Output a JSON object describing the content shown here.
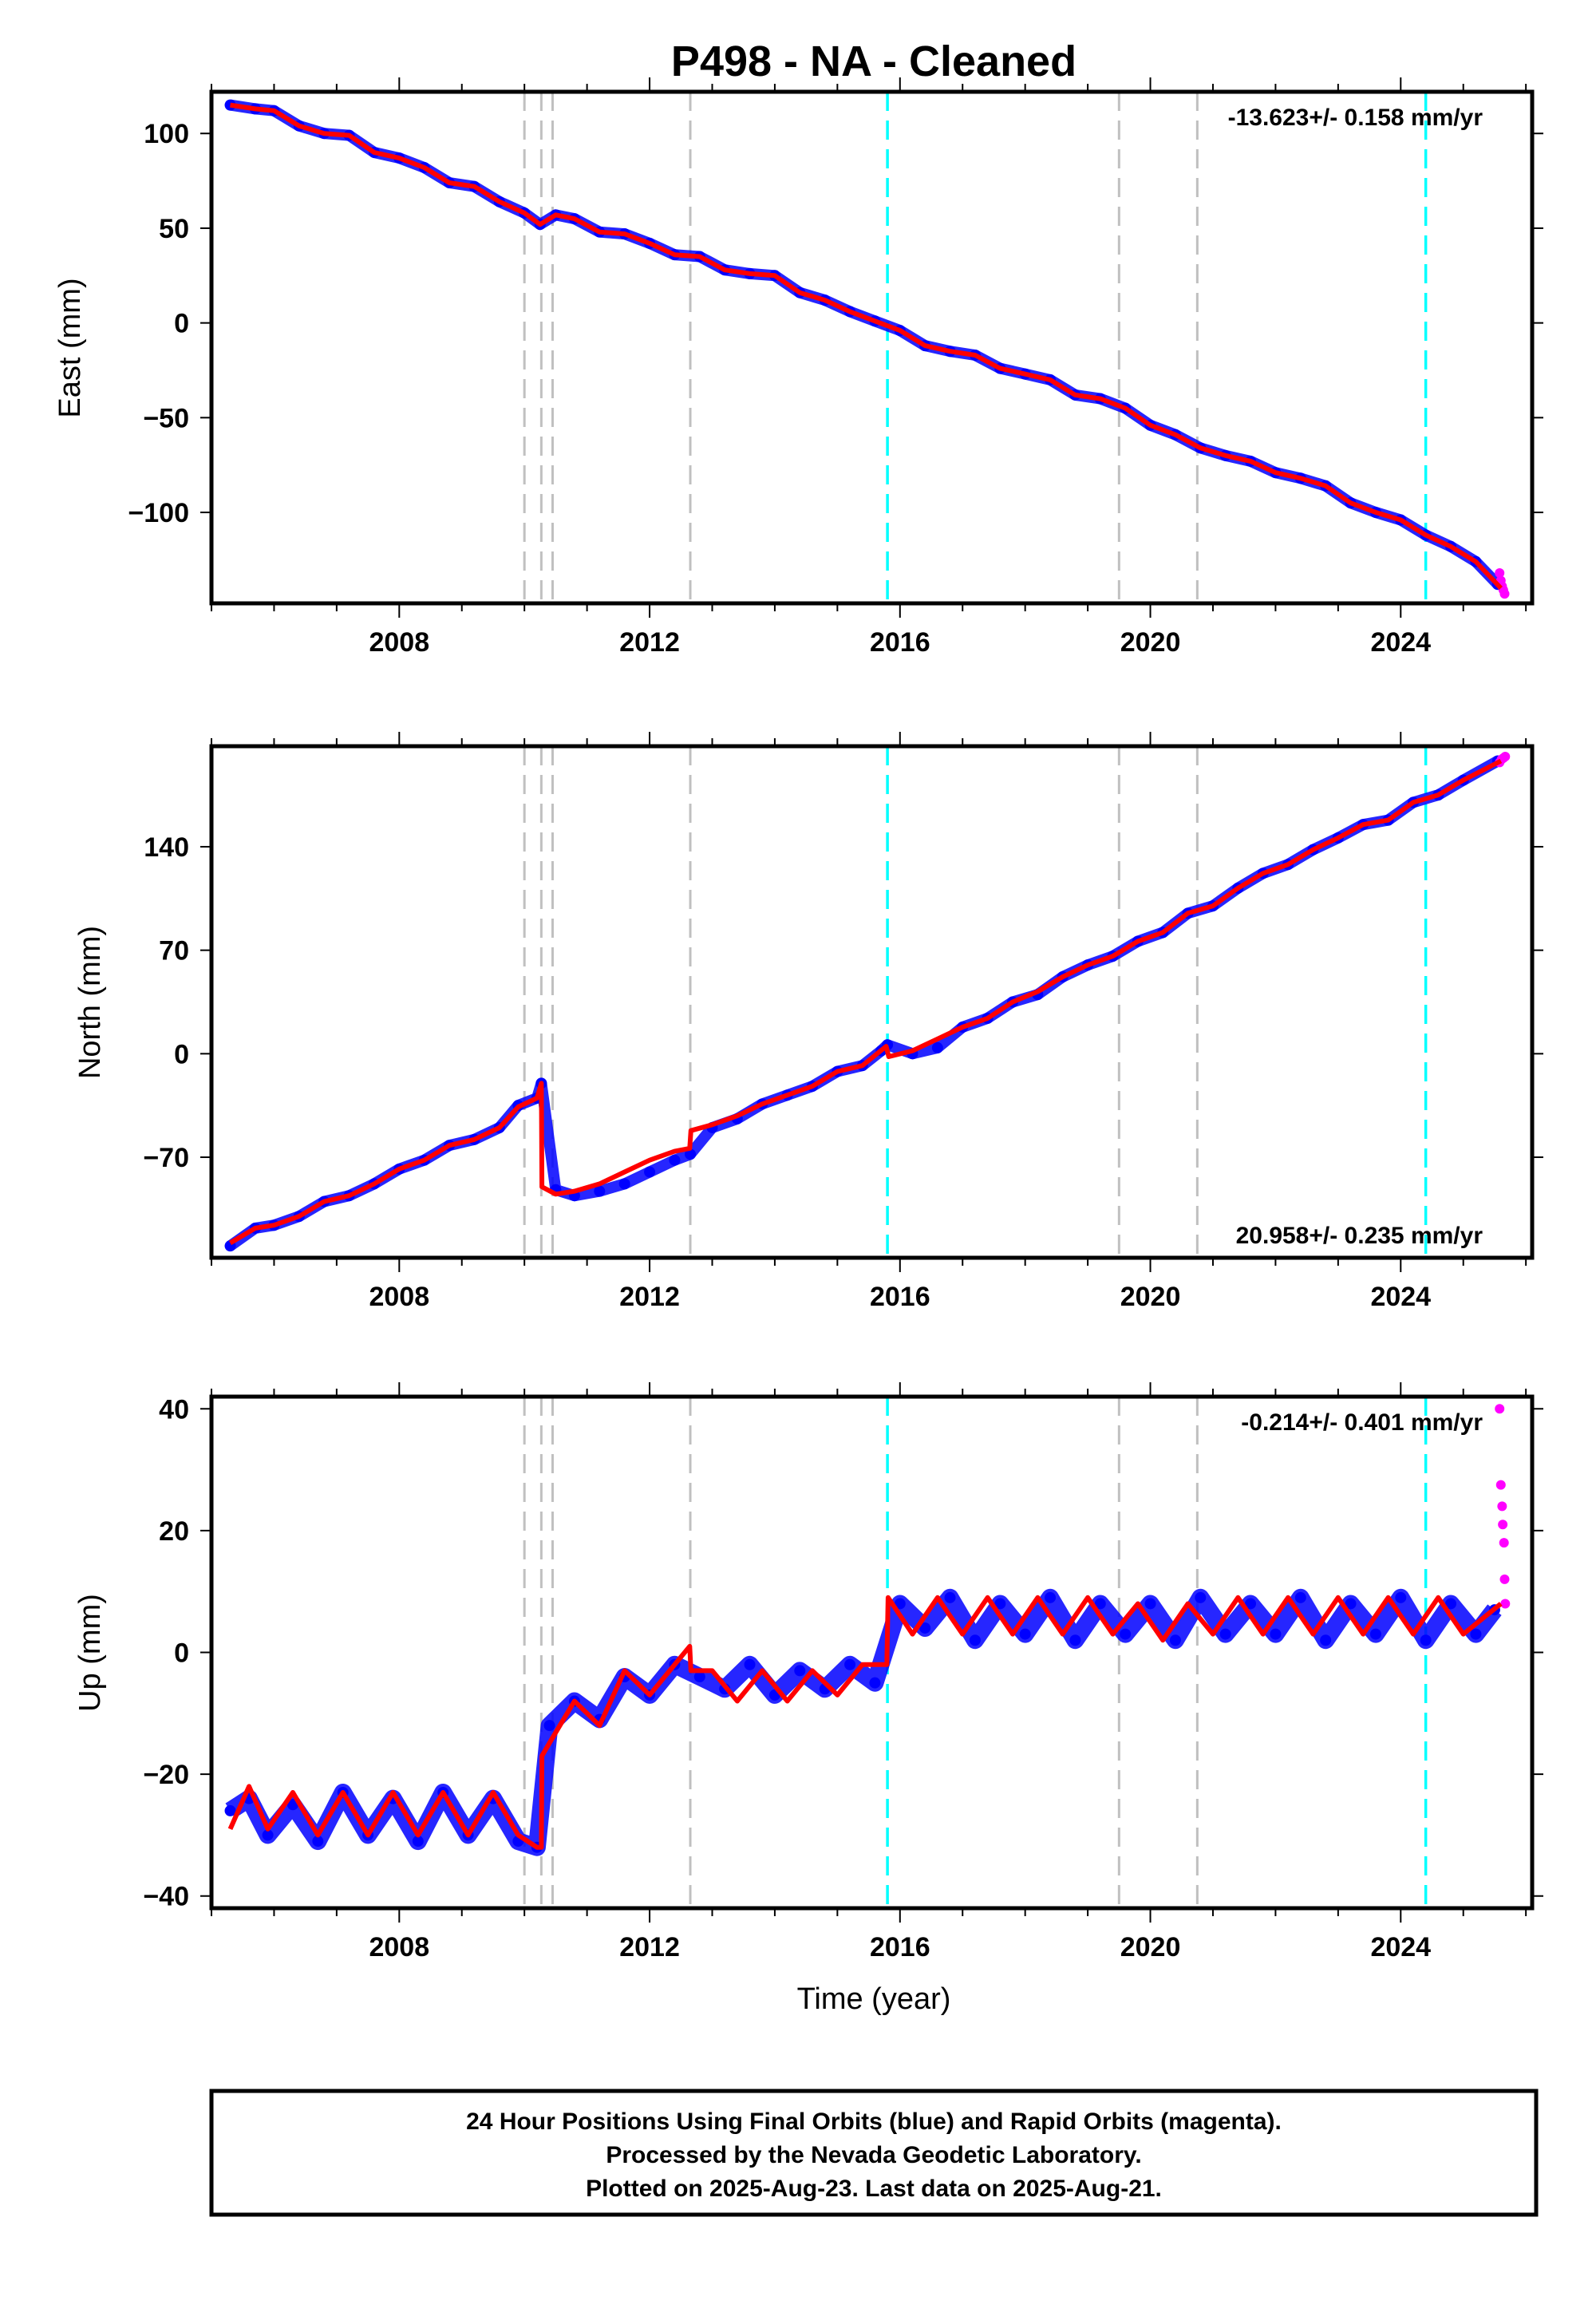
{
  "chart_data": [
    {
      "type": "scatter",
      "panel": "east",
      "ylabel": "East (mm)",
      "xlabel": "",
      "rate_text": "-13.623+/- 0.158 mm/yr",
      "rate_position": "top-right",
      "xlim": [
        2005.0,
        2026.1
      ],
      "ylim": [
        -148,
        122
      ],
      "xticks": [
        2008,
        2012,
        2016,
        2020,
        2024
      ],
      "yticks": [
        -100,
        -50,
        0,
        50,
        100
      ],
      "ytick_labels": [
        "−100",
        "−50",
        "0",
        "50",
        "100"
      ],
      "equipment_changes": [
        2010.0,
        2010.27,
        2010.45,
        2012.65,
        2019.5,
        2020.75
      ],
      "earthquakes": [
        2015.8,
        2024.4
      ],
      "series": [
        {
          "name": "Final Orbits (blue)",
          "color": "#0000ff",
          "x": [
            2005.3,
            2005.7,
            2006.0,
            2006.4,
            2006.8,
            2007.2,
            2007.6,
            2008.0,
            2008.4,
            2008.8,
            2009.2,
            2009.6,
            2010.0,
            2010.25,
            2010.5,
            2010.8,
            2011.2,
            2011.6,
            2012.0,
            2012.4,
            2012.8,
            2013.2,
            2013.6,
            2014.0,
            2014.4,
            2014.8,
            2015.2,
            2015.6,
            2016.0,
            2016.4,
            2016.8,
            2017.2,
            2017.6,
            2018.0,
            2018.4,
            2018.8,
            2019.2,
            2019.6,
            2020.0,
            2020.4,
            2020.8,
            2021.2,
            2021.6,
            2022.0,
            2022.4,
            2022.8,
            2023.2,
            2023.6,
            2024.0,
            2024.4,
            2024.8,
            2025.2,
            2025.55
          ],
          "y": [
            115,
            113,
            112,
            104,
            100,
            99,
            90,
            87,
            82,
            74,
            72,
            64,
            58,
            52,
            57,
            55,
            48,
            47,
            42,
            36,
            35,
            28,
            26,
            25,
            16,
            12,
            6,
            1,
            -4,
            -12,
            -15,
            -17,
            -24,
            -27,
            -30,
            -38,
            -40,
            -45,
            -54,
            -59,
            -66,
            -70,
            -73,
            -79,
            -82,
            -86,
            -95,
            -100,
            -104,
            -112,
            -118,
            -126,
            -138
          ]
        },
        {
          "name": "Rapid Orbits (magenta)",
          "color": "#ff00ff",
          "x": [
            2025.58,
            2025.6,
            2025.62,
            2025.64,
            2025.66
          ],
          "y": [
            -132,
            -136,
            -139,
            -141,
            -143
          ]
        },
        {
          "name": "Model fit",
          "color": "#ff0000",
          "x": [
            2005.3,
            2005.7,
            2006.0,
            2006.4,
            2006.8,
            2007.2,
            2007.6,
            2008.0,
            2008.4,
            2008.8,
            2009.2,
            2009.6,
            2010.0,
            2010.25,
            2010.5,
            2010.8,
            2011.2,
            2011.6,
            2012.0,
            2012.4,
            2012.8,
            2013.2,
            2013.6,
            2014.0,
            2014.4,
            2014.8,
            2015.2,
            2015.6,
            2016.0,
            2016.4,
            2016.8,
            2017.2,
            2017.6,
            2018.0,
            2018.4,
            2018.8,
            2019.2,
            2019.6,
            2020.0,
            2020.4,
            2020.8,
            2021.2,
            2021.6,
            2022.0,
            2022.4,
            2022.8,
            2023.2,
            2023.6,
            2024.0,
            2024.4,
            2024.8,
            2025.2,
            2025.6
          ],
          "y": [
            115,
            113,
            112,
            104,
            100,
            99,
            90,
            87,
            82,
            74,
            72,
            64,
            58,
            52,
            57,
            55,
            48,
            47,
            42,
            36,
            35,
            28,
            26,
            25,
            16,
            12,
            6,
            1,
            -4,
            -12,
            -15,
            -17,
            -24,
            -27,
            -30,
            -38,
            -40,
            -45,
            -54,
            -59,
            -66,
            -70,
            -73,
            -79,
            -82,
            -86,
            -95,
            -100,
            -104,
            -112,
            -118,
            -126,
            -140
          ]
        }
      ]
    },
    {
      "type": "scatter",
      "panel": "north",
      "ylabel": "North (mm)",
      "xlabel": "",
      "rate_text": "20.958+/- 0.235 mm/yr",
      "rate_position": "bottom-right",
      "xlim": [
        2005.0,
        2026.1
      ],
      "ylim": [
        -138,
        208
      ],
      "xticks": [
        2008,
        2012,
        2016,
        2020,
        2024
      ],
      "yticks": [
        -70,
        0,
        70,
        140
      ],
      "ytick_labels": [
        "−70",
        "0",
        "70",
        "140"
      ],
      "equipment_changes": [
        2010.0,
        2010.27,
        2010.45,
        2012.65,
        2019.5,
        2020.75
      ],
      "earthquakes": [
        2015.8,
        2024.4
      ],
      "series": [
        {
          "name": "Final Orbits (blue)",
          "color": "#0000ff",
          "x": [
            2005.3,
            2005.7,
            2006.0,
            2006.4,
            2006.8,
            2007.2,
            2007.6,
            2008.0,
            2008.4,
            2008.8,
            2009.2,
            2009.6,
            2009.9,
            2010.2,
            2010.27,
            2010.5,
            2010.8,
            2011.2,
            2011.6,
            2012.0,
            2012.4,
            2012.65,
            2013.0,
            2013.4,
            2013.8,
            2014.2,
            2014.6,
            2015.0,
            2015.4,
            2015.7,
            2015.8,
            2016.2,
            2016.6,
            2017.0,
            2017.4,
            2017.8,
            2018.2,
            2018.6,
            2019.0,
            2019.4,
            2019.8,
            2020.2,
            2020.6,
            2021.0,
            2021.4,
            2021.8,
            2022.2,
            2022.6,
            2023.0,
            2023.4,
            2023.8,
            2024.2,
            2024.6,
            2025.0,
            2025.55
          ],
          "y": [
            -130,
            -118,
            -116,
            -110,
            -100,
            -96,
            -88,
            -78,
            -72,
            -62,
            -58,
            -50,
            -35,
            -30,
            -20,
            -92,
            -96,
            -93,
            -88,
            -80,
            -72,
            -68,
            -50,
            -44,
            -34,
            -28,
            -22,
            -12,
            -8,
            2,
            6,
            0,
            4,
            18,
            24,
            35,
            40,
            52,
            60,
            66,
            76,
            82,
            95,
            100,
            112,
            122,
            128,
            138,
            146,
            155,
            158,
            170,
            175,
            185,
            198
          ]
        },
        {
          "name": "Rapid Orbits (magenta)",
          "color": "#ff00ff",
          "x": [
            2025.58,
            2025.61,
            2025.64,
            2025.67
          ],
          "y": [
            197,
            199,
            200,
            201
          ]
        },
        {
          "name": "Model fit",
          "color": "#ff0000",
          "x": [
            2005.3,
            2005.7,
            2006.0,
            2006.4,
            2006.8,
            2007.2,
            2007.6,
            2008.0,
            2008.4,
            2008.8,
            2009.2,
            2009.6,
            2009.9,
            2010.2,
            2010.27,
            2010.28,
            2010.5,
            2010.8,
            2011.2,
            2011.6,
            2012.0,
            2012.4,
            2012.64,
            2012.66,
            2013.0,
            2013.4,
            2013.8,
            2014.2,
            2014.6,
            2015.0,
            2015.4,
            2015.78,
            2015.82,
            2016.2,
            2016.6,
            2017.0,
            2017.4,
            2017.8,
            2018.2,
            2018.6,
            2019.0,
            2019.4,
            2019.8,
            2020.2,
            2020.6,
            2021.0,
            2021.4,
            2021.8,
            2022.2,
            2022.6,
            2023.0,
            2023.4,
            2023.8,
            2024.2,
            2024.6,
            2025.0,
            2025.6
          ],
          "y": [
            -128,
            -118,
            -116,
            -110,
            -100,
            -96,
            -88,
            -78,
            -72,
            -62,
            -58,
            -50,
            -36,
            -30,
            -20,
            -90,
            -95,
            -93,
            -88,
            -80,
            -72,
            -66,
            -64,
            -52,
            -48,
            -42,
            -34,
            -28,
            -22,
            -12,
            -8,
            5,
            -2,
            2,
            10,
            18,
            24,
            35,
            42,
            52,
            60,
            66,
            76,
            82,
            95,
            100,
            112,
            122,
            128,
            138,
            146,
            155,
            158,
            170,
            175,
            185,
            198
          ]
        }
      ]
    },
    {
      "type": "scatter",
      "panel": "up",
      "ylabel": "Up (mm)",
      "xlabel": "Time (year)",
      "rate_text": "-0.214+/- 0.401 mm/yr",
      "rate_position": "top-right",
      "xlim": [
        2005.0,
        2026.1
      ],
      "ylim": [
        -42,
        42
      ],
      "xticks": [
        2008,
        2012,
        2016,
        2020,
        2024
      ],
      "yticks": [
        -40,
        -20,
        0,
        20,
        40
      ],
      "ytick_labels": [
        "−40",
        "−20",
        "0",
        "20",
        "40"
      ],
      "equipment_changes": [
        2010.0,
        2010.27,
        2010.45,
        2012.65,
        2019.5,
        2020.75
      ],
      "earthquakes": [
        2015.8,
        2024.4
      ],
      "series": [
        {
          "name": "Final Orbits (blue)",
          "color": "#0000ff",
          "x": [
            2005.3,
            2005.6,
            2005.9,
            2006.3,
            2006.7,
            2007.1,
            2007.5,
            2007.9,
            2008.3,
            2008.7,
            2009.1,
            2009.5,
            2009.9,
            2010.2,
            2010.4,
            2010.8,
            2011.2,
            2011.6,
            2012.0,
            2012.4,
            2012.8,
            2013.2,
            2013.6,
            2014.0,
            2014.4,
            2014.8,
            2015.2,
            2015.6,
            2016.0,
            2016.4,
            2016.8,
            2017.2,
            2017.6,
            2018.0,
            2018.4,
            2018.8,
            2019.2,
            2019.6,
            2020.0,
            2020.4,
            2020.8,
            2021.2,
            2021.6,
            2022.0,
            2022.4,
            2022.8,
            2023.2,
            2023.6,
            2024.0,
            2024.4,
            2024.8,
            2025.2,
            2025.5
          ],
          "y": [
            -26,
            -24,
            -30,
            -25,
            -31,
            -23,
            -30,
            -24,
            -31,
            -23,
            -30,
            -24,
            -31,
            -32,
            -12,
            -8,
            -11,
            -4,
            -7,
            -2,
            -4,
            -6,
            -2,
            -7,
            -3,
            -6,
            -2,
            -5,
            8,
            4,
            9,
            2,
            8,
            3,
            9,
            2,
            8,
            3,
            8,
            2,
            9,
            3,
            8,
            3,
            9,
            2,
            8,
            3,
            9,
            2,
            8,
            3,
            7
          ]
        },
        {
          "name": "Rapid Orbits (magenta)",
          "color": "#ff00ff",
          "x": [
            2025.58,
            2025.6,
            2025.62,
            2025.63,
            2025.65,
            2025.66,
            2025.67
          ],
          "y": [
            40,
            27.5,
            24,
            21,
            18,
            12,
            8
          ]
        },
        {
          "name": "Model fit",
          "color": "#ff0000",
          "x": [
            2005.3,
            2005.6,
            2005.9,
            2006.3,
            2006.7,
            2007.1,
            2007.5,
            2007.9,
            2008.3,
            2008.7,
            2009.1,
            2009.5,
            2009.9,
            2010.2,
            2010.27,
            2010.28,
            2010.45,
            2010.8,
            2011.2,
            2011.6,
            2012.0,
            2012.4,
            2012.64,
            2012.66,
            2013.0,
            2013.4,
            2013.8,
            2014.2,
            2014.6,
            2015.0,
            2015.4,
            2015.79,
            2015.81,
            2016.2,
            2016.6,
            2017.0,
            2017.4,
            2017.8,
            2018.2,
            2018.6,
            2019.0,
            2019.4,
            2019.8,
            2020.2,
            2020.6,
            2021.0,
            2021.4,
            2021.8,
            2022.2,
            2022.6,
            2023.0,
            2023.4,
            2023.8,
            2024.2,
            2024.6,
            2025.0,
            2025.6
          ],
          "y": [
            -29,
            -22,
            -29,
            -23,
            -30,
            -23,
            -30,
            -23,
            -30,
            -23,
            -30,
            -23,
            -30,
            -32,
            -32,
            -17,
            -14,
            -8,
            -12,
            -3,
            -7,
            -2,
            1,
            -3,
            -3,
            -8,
            -3,
            -8,
            -3,
            -7,
            -2,
            -2,
            9,
            3,
            9,
            3,
            9,
            3,
            9,
            3,
            9,
            3,
            8,
            2,
            8,
            3,
            9,
            3,
            9,
            3,
            9,
            3,
            9,
            3,
            9,
            3,
            8
          ]
        }
      ]
    }
  ],
  "title": "P498  - NA - Cleaned",
  "caption_lines": [
    "24 Hour Positions Using Final Orbits (blue) and Rapid Orbits (magenta).",
    "Processed by the Nevada Geodetic Laboratory.",
    "Plotted on 2025-Aug-23. Last data on 2025-Aug-21."
  ],
  "colors": {
    "final_orbits": "#0000ff",
    "rapid_orbits": "#ff00ff",
    "model_fit": "#ff0000",
    "equipment_change_line": "#c0c0c0",
    "earthquake_line": "#00ffff"
  }
}
